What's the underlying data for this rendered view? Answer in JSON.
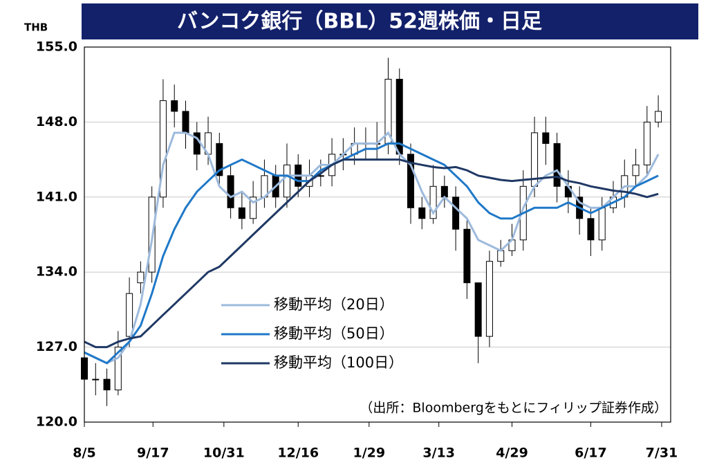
{
  "chart_data": {
    "type": "candlestick",
    "title": "バンコク銀行（BBL）52週株価・日足",
    "y_unit": "THB",
    "note": "（出所：Bloombergをもとにフィリップ証券作成）",
    "candles": {
      "open": [
        126,
        124,
        124,
        123,
        128,
        133,
        134,
        141,
        150,
        149,
        147,
        145,
        146,
        143,
        140,
        139,
        141,
        143,
        141,
        144,
        142,
        143,
        143,
        145,
        145,
        146,
        146,
        146,
        152,
        145,
        140,
        139,
        142,
        141,
        138,
        133,
        128,
        135,
        136,
        137,
        142,
        147,
        146,
        142,
        141,
        139,
        137,
        140,
        141,
        143,
        144,
        148
      ],
      "high": [
        127,
        125.5,
        125,
        128.5,
        133.5,
        135,
        142,
        152,
        151.5,
        150,
        148,
        148.5,
        147,
        144,
        141.5,
        142.5,
        144.5,
        144,
        146,
        145,
        144.5,
        144.5,
        146.5,
        146.5,
        147.5,
        147.5,
        148,
        154,
        153,
        146,
        141,
        144,
        143,
        142,
        139,
        131,
        136,
        137,
        138.5,
        143.5,
        148.5,
        148.5,
        147,
        143.5,
        142,
        140,
        141,
        142.5,
        144.5,
        145.5,
        149.5,
        150.5
      ],
      "low": [
        123,
        122.5,
        121.5,
        122.5,
        127,
        132,
        133,
        140,
        147.5,
        145.5,
        143.5,
        144,
        142,
        139,
        138,
        138.5,
        140,
        140,
        140,
        141,
        141,
        142,
        142,
        143.5,
        144,
        144.5,
        144.5,
        145,
        144,
        138.5,
        138,
        138.5,
        140,
        136,
        131.5,
        125.5,
        127,
        134.5,
        135.5,
        136,
        141,
        144,
        140.5,
        139.5,
        137.5,
        135.5,
        136,
        139.5,
        140,
        142,
        143,
        147.5
      ],
      "close": [
        124,
        124,
        123,
        127,
        132,
        134,
        141,
        150,
        149,
        147,
        145,
        147,
        143,
        140,
        139,
        141,
        143,
        141,
        144,
        142,
        143,
        143,
        145,
        145,
        146,
        146,
        146,
        152,
        145,
        140,
        139,
        142,
        141,
        138,
        133,
        128,
        135,
        136,
        137,
        142,
        147,
        146,
        142,
        141,
        139,
        137,
        140,
        141,
        143,
        144,
        148,
        149
      ],
      "up_color": "#ffffff",
      "down_color": "#000000"
    },
    "series": [
      {
        "name": "移動平均（20日）",
        "color": "#9dbadc",
        "values": [
          126.5,
          126,
          125.5,
          126,
          127.5,
          131,
          137,
          144,
          147,
          147,
          146.5,
          145,
          142,
          141,
          141.5,
          140.5,
          141,
          142,
          143,
          143,
          143,
          144,
          144,
          145,
          146,
          146,
          146,
          147,
          145,
          144,
          141.5,
          139.5,
          141,
          140,
          139,
          137,
          136.5,
          136,
          137,
          140,
          142,
          143,
          143.5,
          142,
          140.5,
          140,
          140,
          141,
          142,
          142,
          143,
          145
        ]
      },
      {
        "name": "移動平均（50日）",
        "color": "#1f78c8",
        "values": [
          126.5,
          126,
          125.5,
          126.5,
          127.5,
          129,
          132,
          135.5,
          138,
          140,
          141.5,
          142.5,
          143.5,
          144,
          144.5,
          144,
          143.5,
          143,
          143,
          142.5,
          142.5,
          143.5,
          144,
          144.5,
          145,
          145.5,
          145.5,
          146,
          146,
          145.5,
          145,
          144.5,
          144,
          143,
          142,
          140.5,
          139.5,
          139,
          139,
          139.5,
          140,
          140,
          140,
          140.5,
          140,
          139.5,
          140,
          140.5,
          141,
          142,
          142.5,
          143
        ]
      },
      {
        "name": "移動平均（100日）",
        "color": "#1f3864",
        "values": [
          127.5,
          127,
          127,
          127.5,
          127.8,
          128,
          129,
          130,
          131,
          132,
          133,
          134,
          134.5,
          135.5,
          136.5,
          137.5,
          138.5,
          139.5,
          140.5,
          141.5,
          142.5,
          143.2,
          144,
          144.5,
          144.5,
          144.5,
          144.5,
          144.5,
          144.5,
          144.2,
          144,
          143.8,
          143.7,
          143.8,
          143.5,
          143,
          142.8,
          142.6,
          142.5,
          142.6,
          142.7,
          142.8,
          142.9,
          142.5,
          142.3,
          142,
          141.8,
          141.6,
          141.5,
          141.3,
          141,
          141.3
        ]
      }
    ],
    "xlim": [
      0,
      52.1
    ],
    "xticks": [
      {
        "value": 0,
        "label": "8/5"
      },
      {
        "value": 6.1,
        "label": "9/17"
      },
      {
        "value": 12.4,
        "label": "10/31"
      },
      {
        "value": 19,
        "label": "12/16"
      },
      {
        "value": 25.3,
        "label": "1/29"
      },
      {
        "value": 31.5,
        "label": "3/13"
      },
      {
        "value": 38,
        "label": "4/29"
      },
      {
        "value": 45,
        "label": "6/17"
      },
      {
        "value": 51.3,
        "label": "7/31"
      }
    ],
    "ylim": [
      120,
      155
    ],
    "yticks": [
      {
        "value": 120,
        "label": "120.0"
      },
      {
        "value": 127,
        "label": "127.0"
      },
      {
        "value": 134,
        "label": "134.0"
      },
      {
        "value": 141,
        "label": "141.0"
      },
      {
        "value": 148,
        "label": "148.0"
      },
      {
        "value": 155,
        "label": "155.0"
      }
    ],
    "grid": true
  }
}
